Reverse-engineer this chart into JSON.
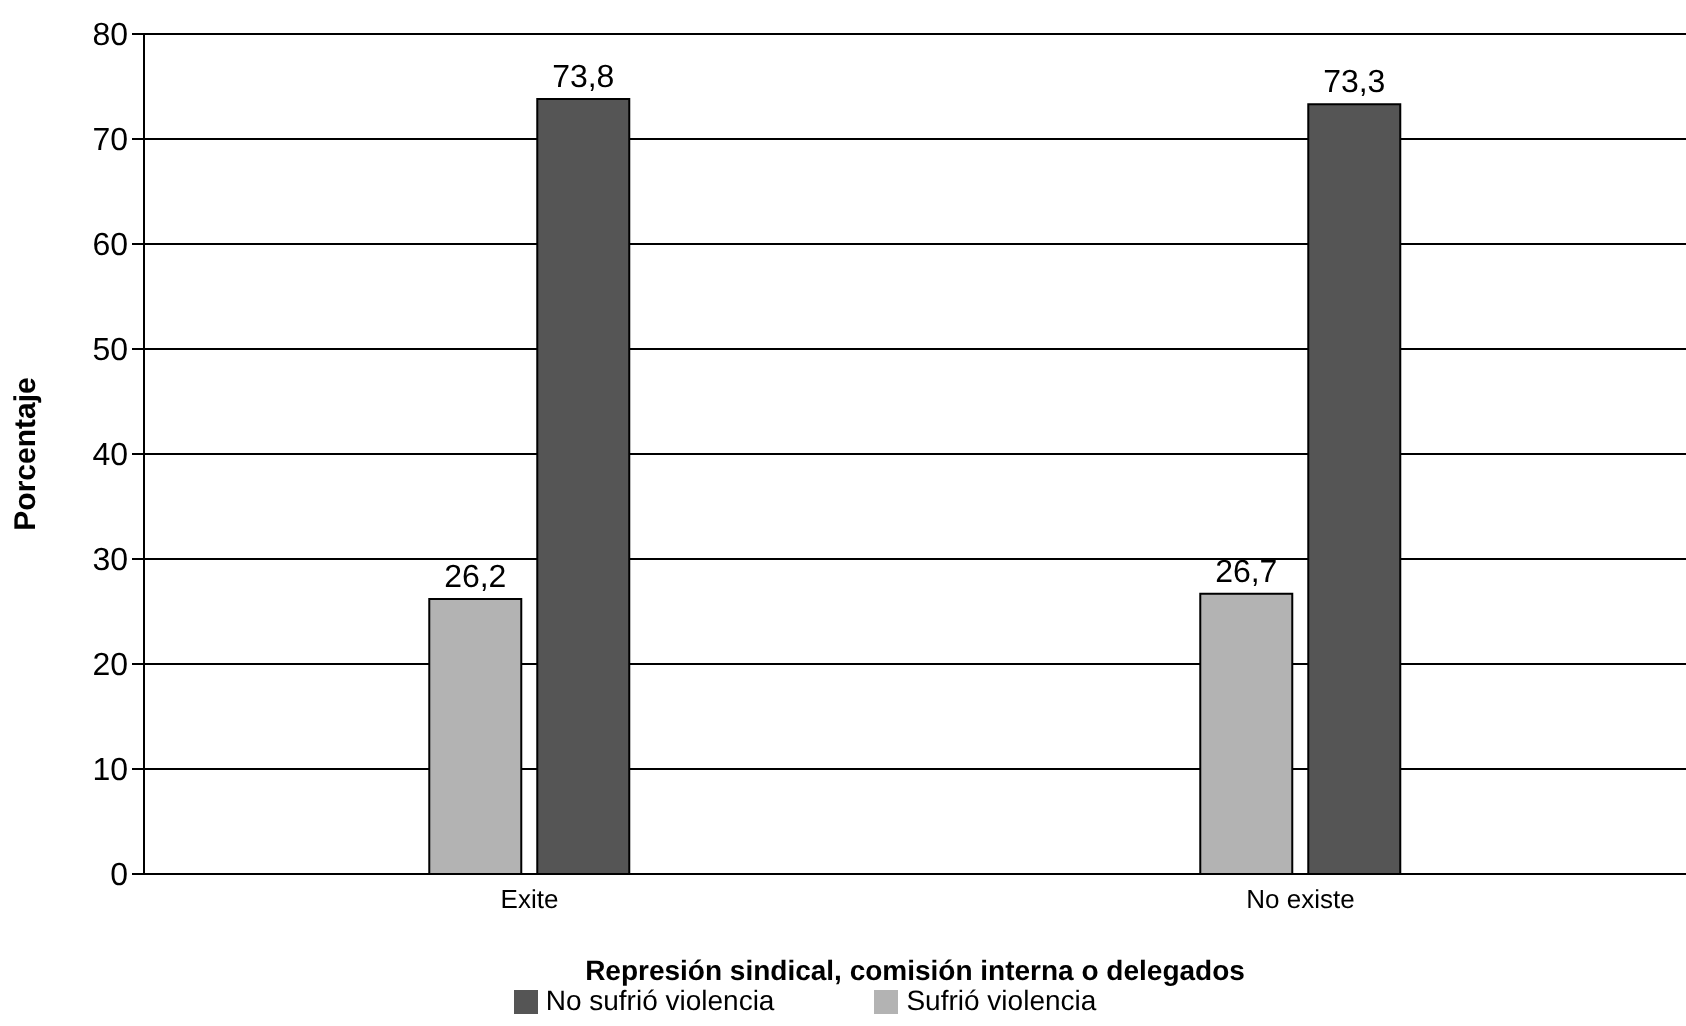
{
  "chart_data": {
    "type": "bar",
    "xlabel": "Represión sindical, comisión interna o delegados",
    "ylabel": "Porcentaje",
    "categories": [
      "Exite",
      "No existe"
    ],
    "series": [
      {
        "name": "Sufrió violencia",
        "color": "#b3b3b3",
        "values": [
          26.2,
          26.7
        ],
        "value_labels": [
          "26,2",
          "26,7"
        ]
      },
      {
        "name": "No sufrió violencia",
        "color": "#555555",
        "values": [
          73.8,
          73.3
        ],
        "value_labels": [
          "73,8",
          "73,3"
        ]
      }
    ],
    "ylim": [
      0,
      80
    ],
    "yticks": [
      0,
      10,
      20,
      30,
      40,
      50,
      60,
      70,
      80
    ],
    "grid": "y",
    "legend": "bottom"
  }
}
